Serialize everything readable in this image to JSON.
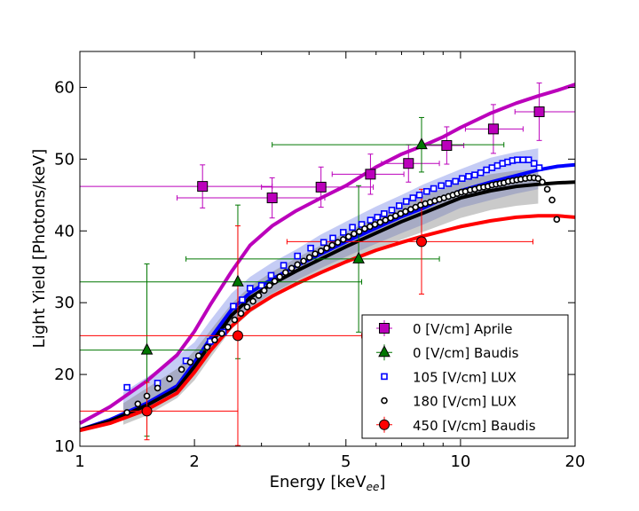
{
  "chart_data": {
    "type": "scatter",
    "xlabel": "Energy [keV",
    "xlabel_sub": "ee",
    "xlabel_close": "]",
    "ylabel": "Light Yield [Photons/keV]",
    "xscale": "log",
    "xlim": [
      1,
      20
    ],
    "ylim": [
      10,
      65
    ],
    "x_ticks": [
      1,
      2,
      5,
      10,
      20
    ],
    "x_tick_labels": [
      "1",
      "2",
      "5",
      "10",
      "20"
    ],
    "y_ticks": [
      10,
      20,
      30,
      40,
      50,
      60
    ],
    "y_tick_labels": [
      "10",
      "20",
      "30",
      "40",
      "50",
      "60"
    ],
    "grid": false,
    "legend_position": "lower-right",
    "colors": {
      "aprile": "#bb00bb",
      "baudis0": "#007700",
      "lux105": "#0000ff",
      "lux180": "#000000",
      "baudis450": "#ff0000",
      "band_blue": "#6f7fe6",
      "band_gray": "#7a7a7a"
    },
    "series": [
      {
        "name": "0 [V/cm] Aprile",
        "kind": "errorbar-square",
        "color": "#bb00bb",
        "points": [
          {
            "x": 2.1,
            "y": 46.2,
            "xerr": [
              1.0,
              3.2
            ],
            "yerr": [
              3.0,
              3.0
            ]
          },
          {
            "x": 3.2,
            "y": 44.6,
            "xerr": [
              1.8,
              4.4
            ],
            "yerr": [
              2.8,
              2.8
            ]
          },
          {
            "x": 4.3,
            "y": 46.1,
            "xerr": [
              3.0,
              5.9
            ],
            "yerr": [
              2.8,
              2.8
            ]
          },
          {
            "x": 5.8,
            "y": 47.9,
            "xerr": [
              4.6,
              7.1
            ],
            "yerr": [
              2.8,
              2.8
            ]
          },
          {
            "x": 7.3,
            "y": 49.4,
            "xerr": [
              6.2,
              8.8
            ],
            "yerr": [
              2.6,
              2.6
            ]
          },
          {
            "x": 9.2,
            "y": 51.9,
            "xerr": [
              8.0,
              10.2
            ],
            "yerr": [
              2.6,
              2.6
            ]
          },
          {
            "x": 12.2,
            "y": 54.2,
            "xerr": [
              10.3,
              14.6
            ],
            "yerr": [
              3.4,
              3.4
            ]
          },
          {
            "x": 16.1,
            "y": 56.6,
            "xerr": [
              13.9,
              20.0
            ],
            "yerr": [
              4.0,
              4.0
            ]
          }
        ]
      },
      {
        "name": "0 [V/cm] Baudis",
        "kind": "errorbar-triangle",
        "color": "#007700",
        "points": [
          {
            "x": 1.5,
            "y": 23.4,
            "xerr": [
              1.0,
              2.15
            ],
            "yerr": [
              12.0,
              12.0
            ]
          },
          {
            "x": 2.6,
            "y": 32.9,
            "xerr": [
              1.0,
              5.5
            ],
            "yerr": [
              10.7,
              10.7
            ]
          },
          {
            "x": 5.4,
            "y": 36.1,
            "xerr": [
              1.9,
              8.8
            ],
            "yerr": [
              10.2,
              10.2
            ]
          },
          {
            "x": 7.9,
            "y": 52.0,
            "xerr": [
              3.2,
              13.0
            ],
            "yerr": [
              3.8,
              3.8
            ]
          }
        ]
      },
      {
        "name": "105 [V/cm] LUX",
        "kind": "open-square",
        "color": "#0000ff",
        "points": [
          {
            "x": 1.33,
            "y": 18.2
          },
          {
            "x": 1.6,
            "y": 18.8
          },
          {
            "x": 1.9,
            "y": 21.9
          },
          {
            "x": 2.2,
            "y": 24.6
          },
          {
            "x": 2.38,
            "y": 25.9
          },
          {
            "x": 2.53,
            "y": 29.5
          },
          {
            "x": 2.67,
            "y": 30.4
          },
          {
            "x": 2.8,
            "y": 32.0
          },
          {
            "x": 3.0,
            "y": 32.4
          },
          {
            "x": 3.18,
            "y": 33.8
          },
          {
            "x": 3.43,
            "y": 35.2
          },
          {
            "x": 3.73,
            "y": 36.5
          },
          {
            "x": 4.04,
            "y": 37.6
          },
          {
            "x": 4.37,
            "y": 38.4
          },
          {
            "x": 4.62,
            "y": 39.0
          },
          {
            "x": 4.92,
            "y": 39.8
          },
          {
            "x": 5.2,
            "y": 40.5
          },
          {
            "x": 5.5,
            "y": 40.9
          },
          {
            "x": 5.8,
            "y": 41.5
          },
          {
            "x": 6.05,
            "y": 41.9
          },
          {
            "x": 6.3,
            "y": 42.4
          },
          {
            "x": 6.6,
            "y": 42.9
          },
          {
            "x": 6.9,
            "y": 43.5
          },
          {
            "x": 7.2,
            "y": 44.1
          },
          {
            "x": 7.5,
            "y": 44.6
          },
          {
            "x": 7.8,
            "y": 45.0
          },
          {
            "x": 8.15,
            "y": 45.5
          },
          {
            "x": 8.5,
            "y": 45.9
          },
          {
            "x": 8.9,
            "y": 46.3
          },
          {
            "x": 9.3,
            "y": 46.6
          },
          {
            "x": 9.7,
            "y": 46.9
          },
          {
            "x": 10.1,
            "y": 47.3
          },
          {
            "x": 10.5,
            "y": 47.6
          },
          {
            "x": 10.9,
            "y": 47.8
          },
          {
            "x": 11.3,
            "y": 48.1
          },
          {
            "x": 11.7,
            "y": 48.5
          },
          {
            "x": 12.1,
            "y": 48.8
          },
          {
            "x": 12.5,
            "y": 49.1
          },
          {
            "x": 12.9,
            "y": 49.4
          },
          {
            "x": 13.3,
            "y": 49.6
          },
          {
            "x": 13.7,
            "y": 49.8
          },
          {
            "x": 14.1,
            "y": 49.9
          },
          {
            "x": 14.6,
            "y": 49.9
          },
          {
            "x": 15.1,
            "y": 49.9
          },
          {
            "x": 15.6,
            "y": 49.4
          },
          {
            "x": 16.1,
            "y": 48.8
          }
        ]
      },
      {
        "name": "180 [V/cm] LUX",
        "kind": "open-circle",
        "color": "#000000",
        "points": [
          {
            "x": 1.33,
            "y": 14.7
          },
          {
            "x": 1.42,
            "y": 15.9
          },
          {
            "x": 1.5,
            "y": 17.0
          },
          {
            "x": 1.6,
            "y": 18.1
          },
          {
            "x": 1.72,
            "y": 19.4
          },
          {
            "x": 1.85,
            "y": 20.7
          },
          {
            "x": 1.95,
            "y": 21.7
          },
          {
            "x": 2.05,
            "y": 22.6
          },
          {
            "x": 2.16,
            "y": 23.8
          },
          {
            "x": 2.26,
            "y": 24.8
          },
          {
            "x": 2.36,
            "y": 25.7
          },
          {
            "x": 2.45,
            "y": 26.6
          },
          {
            "x": 2.55,
            "y": 27.6
          },
          {
            "x": 2.65,
            "y": 28.5
          },
          {
            "x": 2.75,
            "y": 29.4
          },
          {
            "x": 2.85,
            "y": 30.2
          },
          {
            "x": 2.95,
            "y": 31.0
          },
          {
            "x": 3.05,
            "y": 31.7
          },
          {
            "x": 3.15,
            "y": 32.4
          },
          {
            "x": 3.25,
            "y": 33.0
          },
          {
            "x": 3.35,
            "y": 33.6
          },
          {
            "x": 3.47,
            "y": 34.2
          },
          {
            "x": 3.6,
            "y": 34.8
          },
          {
            "x": 3.73,
            "y": 35.3
          },
          {
            "x": 3.87,
            "y": 35.8
          },
          {
            "x": 4.01,
            "y": 36.3
          },
          {
            "x": 4.15,
            "y": 36.8
          },
          {
            "x": 4.3,
            "y": 37.2
          },
          {
            "x": 4.45,
            "y": 37.6
          },
          {
            "x": 4.6,
            "y": 38.0
          },
          {
            "x": 4.76,
            "y": 38.4
          },
          {
            "x": 4.92,
            "y": 38.8
          },
          {
            "x": 5.08,
            "y": 39.2
          },
          {
            "x": 5.25,
            "y": 39.6
          },
          {
            "x": 5.42,
            "y": 39.9
          },
          {
            "x": 5.6,
            "y": 40.3
          },
          {
            "x": 5.78,
            "y": 40.6
          },
          {
            "x": 5.96,
            "y": 40.9
          },
          {
            "x": 6.15,
            "y": 41.2
          },
          {
            "x": 6.35,
            "y": 41.5
          },
          {
            "x": 6.55,
            "y": 41.8
          },
          {
            "x": 6.75,
            "y": 42.1
          },
          {
            "x": 6.96,
            "y": 42.4
          },
          {
            "x": 7.17,
            "y": 42.7
          },
          {
            "x": 7.4,
            "y": 43.0
          },
          {
            "x": 7.62,
            "y": 43.3
          },
          {
            "x": 7.85,
            "y": 43.6
          },
          {
            "x": 8.08,
            "y": 43.8
          },
          {
            "x": 8.32,
            "y": 44.0
          },
          {
            "x": 8.56,
            "y": 44.2
          },
          {
            "x": 8.8,
            "y": 44.4
          },
          {
            "x": 9.05,
            "y": 44.6
          },
          {
            "x": 9.3,
            "y": 44.8
          },
          {
            "x": 9.55,
            "y": 45.0
          },
          {
            "x": 9.8,
            "y": 45.2
          },
          {
            "x": 10.05,
            "y": 45.4
          },
          {
            "x": 10.3,
            "y": 45.5
          },
          {
            "x": 10.6,
            "y": 45.7
          },
          {
            "x": 10.9,
            "y": 45.8
          },
          {
            "x": 11.2,
            "y": 46.0
          },
          {
            "x": 11.5,
            "y": 46.1
          },
          {
            "x": 11.8,
            "y": 46.2
          },
          {
            "x": 12.1,
            "y": 46.4
          },
          {
            "x": 12.4,
            "y": 46.5
          },
          {
            "x": 12.7,
            "y": 46.6
          },
          {
            "x": 13.0,
            "y": 46.7
          },
          {
            "x": 13.35,
            "y": 46.9
          },
          {
            "x": 13.7,
            "y": 47.0
          },
          {
            "x": 14.05,
            "y": 47.1
          },
          {
            "x": 14.4,
            "y": 47.2
          },
          {
            "x": 14.8,
            "y": 47.3
          },
          {
            "x": 15.2,
            "y": 47.4
          },
          {
            "x": 15.6,
            "y": 47.4
          },
          {
            "x": 16.0,
            "y": 47.3
          },
          {
            "x": 16.4,
            "y": 46.8
          },
          {
            "x": 16.9,
            "y": 45.8
          },
          {
            "x": 17.4,
            "y": 44.3
          },
          {
            "x": 17.9,
            "y": 41.6
          }
        ]
      },
      {
        "name": "450 [V/cm] Baudis",
        "kind": "errorbar-circle",
        "color": "#ff0000",
        "points": [
          {
            "x": 1.5,
            "y": 14.9,
            "xerr": [
              1.0,
              2.6
            ],
            "yerr": [
              4.0,
              4.0
            ]
          },
          {
            "x": 2.6,
            "y": 25.4,
            "xerr": [
              1.0,
              5.5
            ],
            "yerr": [
              15.3,
              15.3
            ]
          },
          {
            "x": 7.9,
            "y": 38.5,
            "xerr": [
              3.5,
              15.5
            ],
            "yerr": [
              7.3,
              7.3
            ]
          }
        ]
      }
    ],
    "curves": [
      {
        "color": "#bb00bb",
        "x": [
          1.0,
          1.2,
          1.5,
          1.8,
          2.0,
          2.2,
          2.5,
          2.8,
          3.2,
          3.7,
          4.3,
          5.0,
          6.0,
          7.0,
          8.0,
          9.0,
          10.0,
          12.0,
          14.0,
          16.0,
          18.0,
          20.0
        ],
        "y": [
          13.2,
          15.5,
          19.1,
          22.7,
          26.0,
          29.7,
          34.3,
          38.0,
          40.7,
          42.8,
          44.6,
          46.3,
          48.9,
          50.7,
          51.9,
          53.1,
          54.4,
          56.4,
          57.8,
          58.8,
          59.6,
          60.4
        ]
      },
      {
        "color": "#0000ff",
        "x": [
          1.0,
          1.2,
          1.5,
          1.8,
          2.0,
          2.2,
          2.5,
          2.8,
          3.2,
          3.7,
          4.3,
          5.0,
          6.0,
          7.0,
          8.0,
          9.0,
          10.0,
          12.0,
          14.0,
          16.0,
          18.0,
          20.0
        ],
        "y": [
          12.3,
          13.7,
          16.0,
          18.4,
          21.7,
          25.0,
          29.0,
          31.4,
          33.3,
          35.1,
          36.8,
          38.5,
          40.4,
          42.0,
          43.2,
          44.5,
          45.6,
          46.8,
          47.7,
          48.5,
          49.0,
          49.2
        ]
      },
      {
        "color": "#000000",
        "x": [
          1.0,
          1.2,
          1.5,
          1.8,
          2.0,
          2.2,
          2.5,
          2.8,
          3.2,
          3.7,
          4.3,
          5.0,
          6.0,
          7.0,
          8.0,
          9.0,
          10.0,
          12.0,
          14.0,
          16.0,
          18.0,
          20.0
        ],
        "y": [
          12.3,
          13.5,
          15.7,
          18.0,
          21.1,
          24.2,
          28.2,
          30.7,
          32.6,
          34.4,
          36.1,
          37.8,
          39.7,
          41.3,
          42.5,
          43.6,
          44.6,
          45.6,
          46.2,
          46.5,
          46.7,
          46.8
        ]
      },
      {
        "color": "#ff0000",
        "x": [
          1.0,
          1.2,
          1.5,
          1.8,
          2.0,
          2.2,
          2.5,
          2.8,
          3.2,
          3.7,
          4.3,
          5.0,
          6.0,
          7.0,
          8.0,
          9.0,
          10.0,
          12.0,
          14.0,
          16.0,
          18.0,
          20.0
        ],
        "y": [
          12.2,
          13.2,
          15.1,
          17.4,
          20.3,
          23.3,
          26.7,
          29.0,
          30.9,
          32.6,
          34.2,
          35.7,
          37.3,
          38.4,
          39.3,
          40.0,
          40.6,
          41.4,
          41.9,
          42.1,
          42.1,
          41.9
        ]
      }
    ],
    "bands": [
      {
        "color": "#6f7fe6",
        "x": [
          1.3,
          1.5,
          1.8,
          2.0,
          2.2,
          2.5,
          2.8,
          3.2,
          3.7,
          4.3,
          5.0,
          6.0,
          7.0,
          8.0,
          9.0,
          10.0,
          12.0,
          14.0,
          16.0
        ],
        "upper": [
          17.5,
          19.6,
          22.5,
          24.5,
          27.5,
          31.3,
          33.6,
          35.6,
          37.4,
          39.5,
          41.3,
          43.4,
          45.0,
          46.5,
          47.6,
          48.6,
          50.2,
          51.0,
          51.5
        ],
        "lower": [
          13.7,
          14.9,
          17.6,
          19.9,
          23.2,
          27.3,
          29.4,
          31.3,
          33.1,
          34.8,
          36.4,
          38.2,
          39.7,
          40.9,
          42.1,
          43.2,
          44.3,
          45.2,
          45.8
        ]
      },
      {
        "color": "#7a7a7a",
        "x": [
          1.3,
          1.5,
          1.8,
          2.0,
          2.2,
          2.5,
          2.8,
          3.2,
          3.7,
          4.3,
          5.0,
          6.0,
          7.0,
          8.0,
          9.0,
          10.0,
          12.0,
          14.0,
          16.0
        ],
        "upper": [
          16.0,
          18.1,
          20.8,
          23.3,
          26.1,
          29.8,
          32.3,
          34.3,
          36.2,
          38.0,
          39.8,
          41.9,
          43.6,
          44.9,
          45.9,
          46.8,
          47.9,
          48.4,
          48.6
        ],
        "lower": [
          13.0,
          14.3,
          16.7,
          19.2,
          22.3,
          26.3,
          28.6,
          30.6,
          32.4,
          34.0,
          35.7,
          37.4,
          38.8,
          39.9,
          40.9,
          41.8,
          42.9,
          43.5,
          43.8
        ]
      }
    ]
  }
}
